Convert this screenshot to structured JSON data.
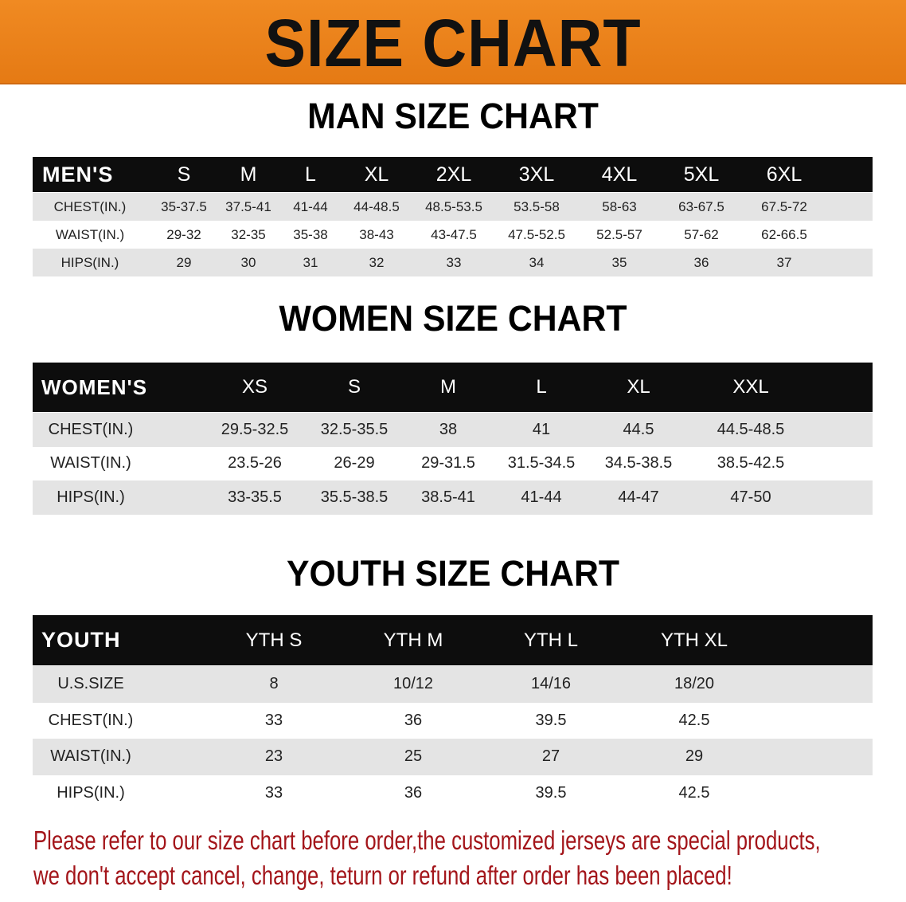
{
  "banner": {
    "title": "SIZE CHART",
    "color": "#e98018"
  },
  "men": {
    "title": "MAN SIZE CHART",
    "header": [
      "MEN'S",
      "S",
      "M",
      "L",
      "XL",
      "2XL",
      "3XL",
      "4XL",
      "5XL",
      "6XL"
    ],
    "rows": [
      [
        "CHEST(IN.)",
        "35-37.5",
        "37.5-41",
        "41-44",
        "44-48.5",
        "48.5-53.5",
        "53.5-58",
        "58-63",
        "63-67.5",
        "67.5-72"
      ],
      [
        "WAIST(IN.)",
        "29-32",
        "32-35",
        "35-38",
        "38-43",
        "43-47.5",
        "47.5-52.5",
        "52.5-57",
        "57-62",
        "62-66.5"
      ],
      [
        "HIPS(IN.)",
        "29",
        "30",
        "31",
        "32",
        "33",
        "34",
        "35",
        "36",
        "37"
      ]
    ]
  },
  "women": {
    "title": "WOMEN SIZE CHART",
    "header": [
      "WOMEN'S",
      "XS",
      "S",
      "M",
      "L",
      "XL",
      "XXL"
    ],
    "rows": [
      [
        "CHEST(IN.)",
        "29.5-32.5",
        "32.5-35.5",
        "38",
        "41",
        "44.5",
        "44.5-48.5"
      ],
      [
        "WAIST(IN.)",
        "23.5-26",
        "26-29",
        "29-31.5",
        "31.5-34.5",
        "34.5-38.5",
        "38.5-42.5"
      ],
      [
        "HIPS(IN.)",
        "33-35.5",
        "35.5-38.5",
        "38.5-41",
        "41-44",
        "44-47",
        "47-50"
      ]
    ]
  },
  "youth": {
    "title": "YOUTH SIZE CHART",
    "header": [
      "YOUTH",
      "YTH S",
      "YTH M",
      "YTH L",
      "YTH XL"
    ],
    "rows": [
      [
        "U.S.SIZE",
        "8",
        "10/12",
        "14/16",
        "18/20"
      ],
      [
        "CHEST(IN.)",
        "33",
        "36",
        "39.5",
        "42.5"
      ],
      [
        "WAIST(IN.)",
        "23",
        "25",
        "27",
        "29"
      ],
      [
        "HIPS(IN.)",
        "33",
        "36",
        "39.5",
        "42.5"
      ]
    ]
  },
  "note": {
    "line1": "Please refer to our size chart before order,the customized jerseys are special products,",
    "line2": "we don't accept cancel, change, teturn or refund after order has been placed!",
    "color": "#a3151a"
  }
}
